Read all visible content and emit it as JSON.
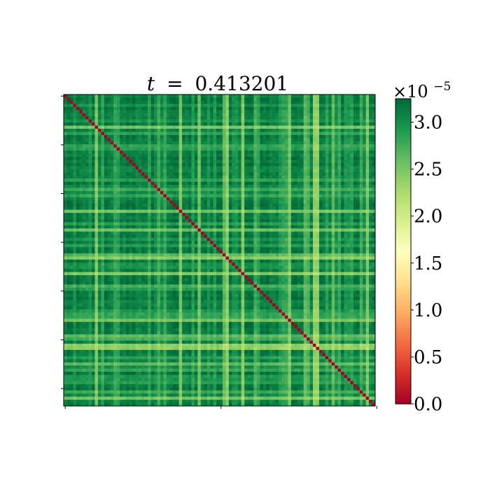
{
  "chart_data": {
    "type": "heatmap",
    "title": {
      "variable": "t",
      "equals": "=",
      "value": "0.413201",
      "full": "t = 0.413201"
    },
    "matrix_size": 100,
    "diagonal_value": 0.0,
    "off_diagonal_range_e5": [
      1.6,
      3.3
    ],
    "xlabel": "",
    "ylabel": "",
    "x_ticks": [
      "",
      "",
      ""
    ],
    "y_ticks": [
      "",
      "",
      "",
      "",
      "",
      "",
      ""
    ],
    "colorbar": {
      "colormap": "RdYlGn",
      "vmin": 0.0,
      "vmax": 3.25,
      "ticks": [
        "0.0",
        "0.5",
        "1.0",
        "1.5",
        "2.0",
        "2.5",
        "3.0"
      ],
      "tick_values": [
        0.0,
        0.5,
        1.0,
        1.5,
        2.0,
        2.5,
        3.0
      ],
      "exponent_prefix": "×10",
      "exponent": "−5"
    },
    "colors": {
      "red": "#a50026",
      "orange": "#f46d43",
      "yellow": "#ffffbf",
      "light_green": "#a6d96a",
      "dark_green": "#006837"
    }
  }
}
